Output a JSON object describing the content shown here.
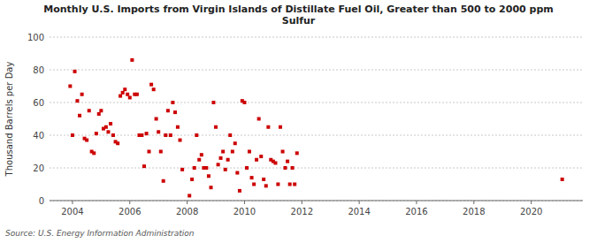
{
  "chart_data": {
    "type": "scatter",
    "title": "Monthly U.S. Imports from Virgin Islands of Distillate Fuel Oil, Greater than 500 to 2000 ppm\nSulfur",
    "ylabel": "Thousand Barrels per Day",
    "annotations": [
      "Source: U.S. Energy Information Administration"
    ],
    "color": "#cc0000",
    "marker": "square",
    "grid": true,
    "xlim": [
      2003.2,
      2021.8
    ],
    "ylim": [
      0,
      100
    ],
    "xticks": [
      2004,
      2006,
      2008,
      2010,
      2012,
      2014,
      2016,
      2018,
      2020
    ],
    "yticks": [
      0,
      20,
      40,
      60,
      80,
      100
    ],
    "x": [
      2003.92,
      2004.0,
      2004.08,
      2004.17,
      2004.25,
      2004.33,
      2004.42,
      2004.5,
      2004.58,
      2004.67,
      2004.75,
      2004.83,
      2004.92,
      2005.0,
      2005.08,
      2005.17,
      2005.25,
      2005.33,
      2005.42,
      2005.5,
      2005.58,
      2005.67,
      2005.75,
      2005.83,
      2005.92,
      2006.0,
      2006.08,
      2006.17,
      2006.25,
      2006.33,
      2006.42,
      2006.5,
      2006.58,
      2006.67,
      2006.75,
      2006.83,
      2006.92,
      2007.0,
      2007.08,
      2007.17,
      2007.25,
      2007.33,
      2007.42,
      2007.5,
      2007.58,
      2007.67,
      2007.75,
      2007.83,
      2008.08,
      2008.17,
      2008.25,
      2008.33,
      2008.42,
      2008.5,
      2008.58,
      2008.67,
      2008.75,
      2008.83,
      2008.92,
      2009.0,
      2009.08,
      2009.17,
      2009.25,
      2009.33,
      2009.42,
      2009.5,
      2009.58,
      2009.67,
      2009.75,
      2009.83,
      2009.92,
      2010.0,
      2010.08,
      2010.17,
      2010.25,
      2010.33,
      2010.42,
      2010.5,
      2010.58,
      2010.67,
      2010.75,
      2010.83,
      2010.92,
      2011.0,
      2011.08,
      2011.17,
      2011.25,
      2011.33,
      2011.42,
      2011.5,
      2011.58,
      2011.67,
      2011.75,
      2011.83,
      2021.08
    ],
    "values": [
      70,
      40,
      79,
      61,
      52,
      65,
      38,
      37,
      55,
      30,
      29,
      41,
      53,
      55,
      44,
      45,
      42,
      47,
      40,
      36,
      35,
      64,
      66,
      68,
      65,
      63,
      86,
      65,
      65,
      40,
      40,
      21,
      41,
      30,
      71,
      68,
      50,
      42,
      30,
      12,
      40,
      55,
      40,
      60,
      54,
      45,
      37,
      19,
      3,
      13,
      20,
      40,
      25,
      28,
      20,
      20,
      15,
      8,
      60,
      45,
      22,
      26,
      30,
      19,
      25,
      40,
      30,
      35,
      17,
      6,
      61,
      60,
      20,
      30,
      14,
      10,
      25,
      50,
      27,
      13,
      9,
      45,
      25,
      24,
      23,
      10,
      45,
      30,
      20,
      24,
      10,
      20,
      10,
      29,
      13
    ]
  }
}
